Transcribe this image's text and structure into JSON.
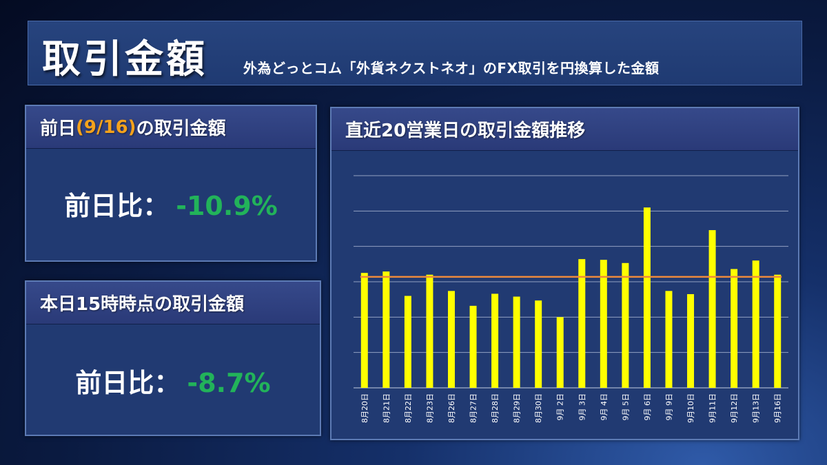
{
  "header": {
    "title": "取引金額",
    "subtitle": "外為どっとコム「外貨ネクストネオ」のFX取引を円換算した金額"
  },
  "prev_day_panel": {
    "title_before": "前日",
    "title_accent": "(9/16)",
    "title_after": "の取引金額",
    "label": "前日比：",
    "value": "-10.9%"
  },
  "today_panel": {
    "title": "本日15時時点の取引金額",
    "label": "前日比：",
    "value": "-8.7%"
  },
  "colors": {
    "bar": "#ffff00",
    "average_line": "#ee8a3c",
    "value_positive": "#22b35a",
    "accent": "#f4a21c"
  },
  "chart_data": {
    "type": "bar",
    "title": "直近20営業日の取引金額推移",
    "categories": [
      "8月20日",
      "8月21日",
      "8月22日",
      "8月23日",
      "8月26日",
      "8月27日",
      "8月28日",
      "8月29日",
      "8月30日",
      "9月 2日",
      "9月 3日",
      "9月 4日",
      "9月 5日",
      "9月 6日",
      "9月 9日",
      "9月10日",
      "9月11日",
      "9月12日",
      "9月13日",
      "9月16日"
    ],
    "values": [
      3.25,
      3.29,
      2.6,
      3.2,
      2.74,
      2.32,
      2.66,
      2.58,
      2.47,
      2.0,
      3.64,
      3.62,
      3.53,
      5.1,
      2.74,
      2.65,
      4.46,
      3.36,
      3.6,
      3.2
    ],
    "average": 3.14,
    "ylim": [
      0,
      6
    ],
    "y_gridlines": [
      1,
      2,
      3,
      4,
      5,
      6
    ],
    "y_tick_labels_shown": false,
    "legend": "none"
  }
}
